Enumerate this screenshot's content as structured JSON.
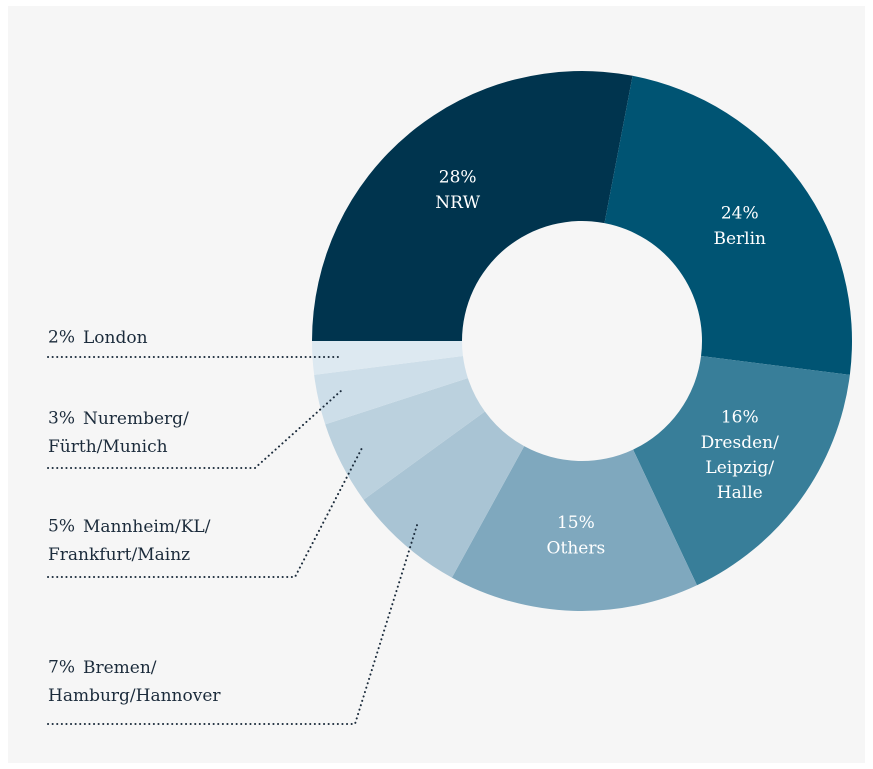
{
  "chart_data": {
    "type": "donut",
    "categories": [
      "NRW",
      "Berlin",
      "Dresden/Leipzig/Halle",
      "Others",
      "Bremen/Hamburg/Hannover",
      "Mannheim/KL/Frankfurt/Mainz",
      "Nuremberg/Fürth/Munich",
      "London"
    ],
    "values": [
      28,
      24,
      16,
      15,
      7,
      5,
      3,
      2
    ],
    "value_labels": [
      "28%",
      "24%",
      "16%",
      "15%",
      "7%",
      "5%",
      "3%",
      "2%"
    ],
    "colors": [
      "#00344e",
      "#005473",
      "#387e99",
      "#7fa8be",
      "#a9c4d4",
      "#bbd1de",
      "#cddee9",
      "#dde9f1"
    ]
  }
}
